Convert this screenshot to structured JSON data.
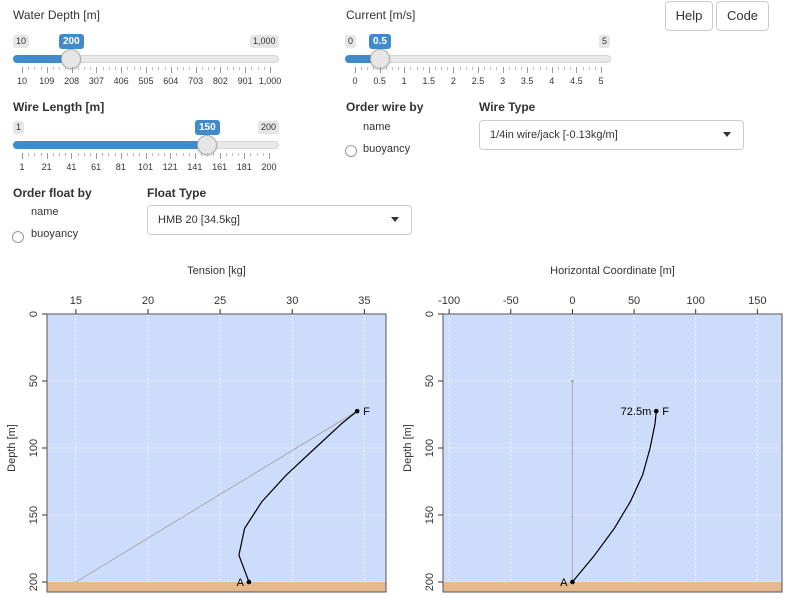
{
  "buttons": {
    "help": "Help",
    "code": "Code"
  },
  "water_depth": {
    "label": "Water Depth [m]",
    "min": "10",
    "max": "1,000",
    "value_label": "200",
    "value": 200,
    "ticks": [
      "10",
      "109",
      "208",
      "307",
      "406",
      "505",
      "604",
      "703",
      "802",
      "901",
      "1,000"
    ]
  },
  "current": {
    "label": "Current [m/s]",
    "min": "0",
    "max": "5",
    "value_label": "0.5",
    "value": 0.5,
    "ticks": [
      "0",
      "0.5",
      "1",
      "1.5",
      "2",
      "2.5",
      "3",
      "3.5",
      "4",
      "4.5",
      "5"
    ]
  },
  "wire_length": {
    "label": "Wire Length [m]",
    "min": "1",
    "max": "200",
    "value_label": "150",
    "value": 150,
    "ticks": [
      "1",
      "21",
      "41",
      "61",
      "81",
      "101",
      "121",
      "141",
      "161",
      "181",
      "200"
    ]
  },
  "order_wire": {
    "label": "Order wire by",
    "options": [
      "name",
      "buoyancy"
    ]
  },
  "wire_type": {
    "label": "Wire Type",
    "selected": "1/4in wire/jack [-0.13kg/m]"
  },
  "order_float": {
    "label": "Order float by",
    "options": [
      "name",
      "buoyancy"
    ]
  },
  "float_type": {
    "label": "Float Type",
    "selected": "HMB 20 [34.5kg]"
  },
  "colors": {
    "water": "#cddcfb",
    "seabed": "#e6b98f",
    "accent": "#428bca",
    "grey_line": "#a9a9a9"
  },
  "chart_data": [
    {
      "type": "line",
      "title": "",
      "xlabel": "Tension [kg]",
      "ylabel": "Depth [m]",
      "xlim": [
        13,
        36.5
      ],
      "ylim": [
        200,
        0
      ],
      "y_reversed": true,
      "xticks": [
        "15",
        "20",
        "25",
        "30",
        "35"
      ],
      "yticks": [
        "0",
        "50",
        "100",
        "150",
        "200"
      ],
      "annotations": [
        {
          "text": "F",
          "x": 34.5,
          "y": 72.5
        },
        {
          "text": "A",
          "x": 27,
          "y": 200
        }
      ],
      "series": [
        {
          "x": [
            15,
            34.5
          ],
          "y": [
            200,
            72.5
          ]
        },
        {
          "x": [
            27,
            26.3,
            26.7,
            27.9,
            29.6,
            31.6,
            33.4,
            34.5
          ],
          "y": [
            200,
            180,
            160,
            140,
            120,
            100,
            82,
            72.5
          ]
        }
      ]
    },
    {
      "type": "line",
      "title": "",
      "xlabel": "Horizontal Coordinate [m]",
      "ylabel": "Depth [m]",
      "xlim": [
        -105,
        170
      ],
      "ylim": [
        200,
        0
      ],
      "y_reversed": true,
      "xticks": [
        "-100",
        "-50",
        "0",
        "50",
        "100",
        "150"
      ],
      "yticks": [
        "0",
        "50",
        "100",
        "150",
        "200"
      ],
      "annotations": [
        {
          "text": "72.5m",
          "x": 68,
          "y": 72.5
        },
        {
          "text": "F",
          "x": 68,
          "y": 72.5
        },
        {
          "text": "A",
          "x": 0,
          "y": 200
        }
      ],
      "series": [
        {
          "x": [
            0,
            0
          ],
          "y": [
            200,
            50
          ]
        },
        {
          "x": [
            0,
            18,
            34,
            47,
            57,
            63,
            67,
            68
          ],
          "y": [
            200,
            180,
            160,
            140,
            120,
            100,
            82,
            72.5
          ]
        }
      ]
    }
  ]
}
